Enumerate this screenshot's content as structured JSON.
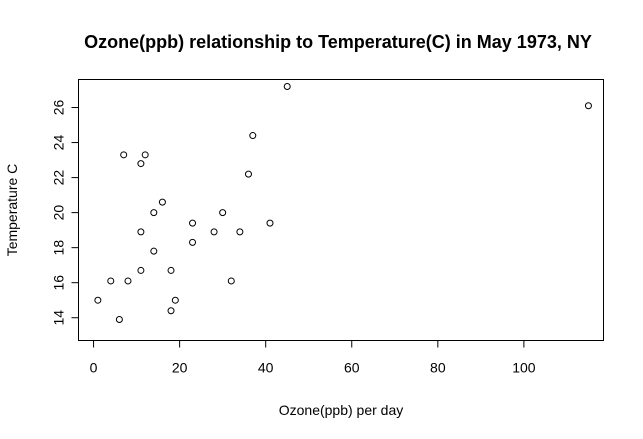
{
  "chart_data": {
    "type": "scatter",
    "title": "Ozone(ppb) relationship to Temperature(C) in May 1973, NY",
    "xlabel": "Ozone(ppb) per day",
    "ylabel": "Temperature C",
    "xlim": [
      -3.5,
      118.5
    ],
    "ylim": [
      12.7,
      27.6
    ],
    "xticks": [
      0,
      20,
      40,
      60,
      80,
      100
    ],
    "yticks": [
      14,
      16,
      18,
      20,
      22,
      24,
      26
    ],
    "grid": false,
    "legend": "none",
    "x": [
      1,
      4,
      6,
      7,
      8,
      11,
      11,
      11,
      12,
      14,
      14,
      16,
      18,
      18,
      19,
      23,
      23,
      28,
      30,
      32,
      34,
      36,
      37,
      41,
      45,
      115
    ],
    "y": [
      15.0,
      16.1,
      13.9,
      23.3,
      16.1,
      18.9,
      22.8,
      16.7,
      23.3,
      17.8,
      20.0,
      20.6,
      16.7,
      14.4,
      15.0,
      19.4,
      18.3,
      18.9,
      20.0,
      16.1,
      18.9,
      22.2,
      24.4,
      19.4,
      27.2,
      26.1
    ],
    "colors": {
      "point": "#000000",
      "axis": "#000000",
      "background": "#ffffff"
    }
  }
}
